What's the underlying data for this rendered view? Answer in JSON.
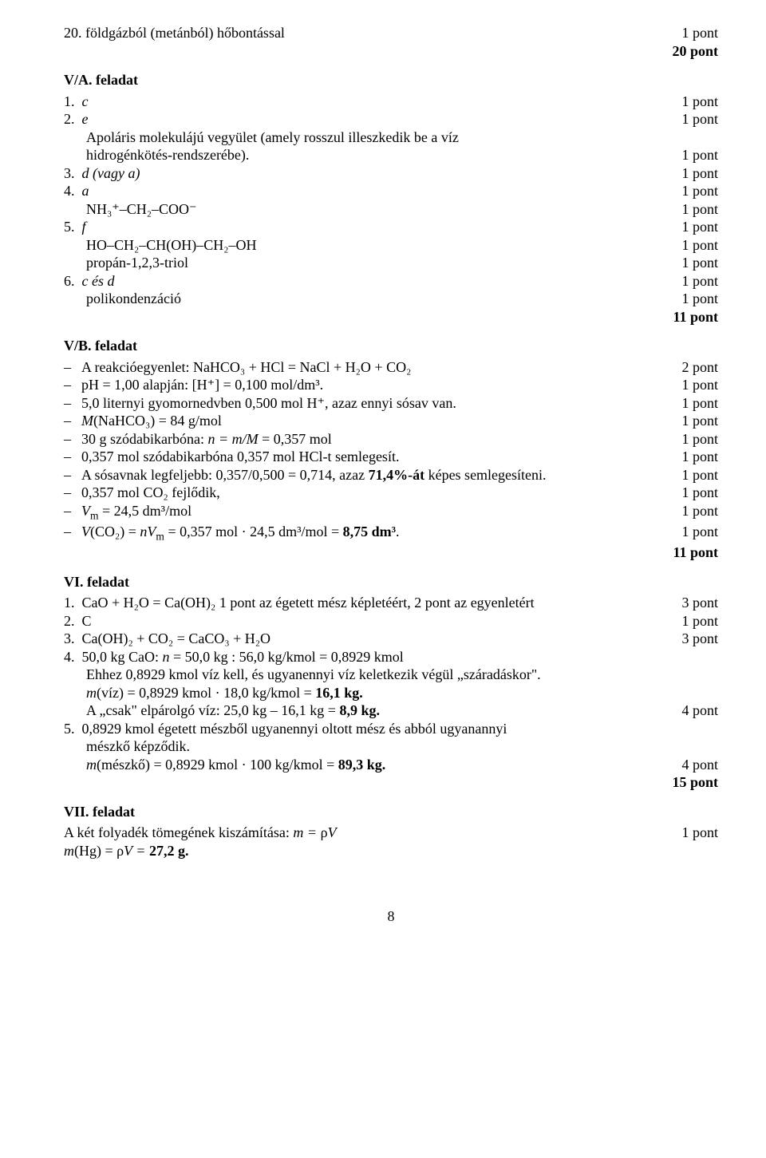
{
  "q20": {
    "num": "20.",
    "text": "földgázból (metánból) hőbontással",
    "pts": "1 pont"
  },
  "total20": "20 pont",
  "VA": {
    "title": "V/A. feladat"
  },
  "VA_items": {
    "n1": "1.",
    "t1": "c",
    "p1": "1 pont",
    "n2": "2.",
    "t2a": "e",
    "p2a": "1 pont",
    "t2b": "Apoláris molekulájú vegyület (amely rosszul illeszkedik be a víz",
    "t2c": "hidrogénkötés-rendszerébe).",
    "p2c": "1 pont",
    "n3": "3.",
    "t3": "d (vagy a)",
    "p3": "1 pont",
    "n4": "4.",
    "t4a": "a",
    "p4a": "1 pont",
    "t4b": "NH₃⁺–CH₂–COO⁻",
    "p4b": "1 pont",
    "n5": "5.",
    "t5a": "f",
    "p5a": "1 pont",
    "t5b": "HO–CH₂–CH(OH)–CH₂–OH",
    "p5b": "1 pont",
    "t5c": "propán-1,2,3-triol",
    "p5c": "1 pont",
    "n6": "6.",
    "t6a": "c és d",
    "p6a": "1 pont",
    "t6b": "polikondenzáció",
    "p6b": "1 pont",
    "total": "11 pont"
  },
  "VB": {
    "title": "V/B. feladat"
  },
  "VB_items": {
    "l1": "A reakcióegyenlet: NaHCO₃ + HCl = NaCl + H₂O + CO₂",
    "p1": "2 pont",
    "l2": "pH = 1,00 alapján: [H⁺] = 0,100 mol/dm³.",
    "p2": "1 pont",
    "l3": "5,0 liternyi gyomornedvben 0,500 mol H⁺, azaz ennyi sósav van.",
    "p3": "1 pont",
    "l4a": "M",
    "l4b": "(NaHCO₃) = 84 g/mol",
    "p4": "1 pont",
    "l5a": "30 g szódabikarbóna: ",
    "l5b": "n = m/M",
    "l5c": " = 0,357 mol",
    "p5": "1 pont",
    "l6": "0,357 mol szódabikarbóna 0,357 mol HCl-t semlegesít.",
    "p6": "1 pont",
    "l7a": "A sósavnak legfeljebb: 0,357/0,500 = 0,714, azaz ",
    "l7b": "71,4%-át",
    "l7c": " képes semlegesíteni.",
    "p7": "1 pont",
    "l8": "0,357 mol CO₂ fejlődik,",
    "p8": "1 pont",
    "l9a": "V",
    "l9b": "m",
    "l9c": " = 24,5 dm³/mol",
    "p9": "1 pont",
    "l10a": "V",
    "l10b": "(CO₂) = ",
    "l10c": "nV",
    "l10d": "m",
    "l10e": " = 0,357 mol · 24,5 dm³/mol = ",
    "l10f": "8,75 dm³",
    "l10g": ".",
    "p10": "1 pont",
    "total": "11 pont"
  },
  "VI": {
    "title": "VI. feladat"
  },
  "VI_items": {
    "n1": "1.",
    "t1": "CaO + H₂O = Ca(OH)₂      1 pont az égetett mész képletéért, 2 pont az egyenletért",
    "p1": "3 pont",
    "n2": "2.",
    "t2": "C",
    "p2": "1 pont",
    "n3": "3.",
    "t3": "Ca(OH)₂ + CO₂ = CaCO₃ + H₂O",
    "p3": "3 pont",
    "n4": "4.",
    "t4a": "50,0 kg CaO: ",
    "t4b": "n",
    "t4c": " = 50,0 kg : 56,0 kg/kmol = 0,8929 kmol",
    "t4d": "Ehhez 0,8929 kmol víz kell, és ugyanennyi víz keletkezik végül „száradáskor\".",
    "t4e1": "m",
    "t4e2": "(víz) = 0,8929 kmol · 18,0 kg/kmol = ",
    "t4e3": "16,1 kg.",
    "t4f1": "A „csak\" elpárolgó víz: 25,0 kg – 16,1 kg = ",
    "t4f2": "8,9 kg.",
    "p4": "4 pont",
    "n5": "5.",
    "t5a": "0,8929 kmol égetett mészből ugyanennyi oltott mész és abból ugyanannyi",
    "t5b": "mészkő képződik.",
    "t5c1": "m",
    "t5c2": "(mészkő) = 0,8929 kmol · 100 kg/kmol = ",
    "t5c3": "89,3 kg.",
    "p5": "4 pont",
    "total": "15 pont"
  },
  "VII": {
    "title": "VII. feladat"
  },
  "VII_items": {
    "l1a": "A két folyadék tömegének kiszámítása: ",
    "l1b": "m = ",
    "l1c": "ρ",
    "l1d": "V",
    "p1": "1 pont",
    "l2a": "m",
    "l2b": "(Hg) = ",
    "l2c": "ρ",
    "l2d": "V = ",
    "l2e": "27,2 g."
  },
  "page": "8"
}
